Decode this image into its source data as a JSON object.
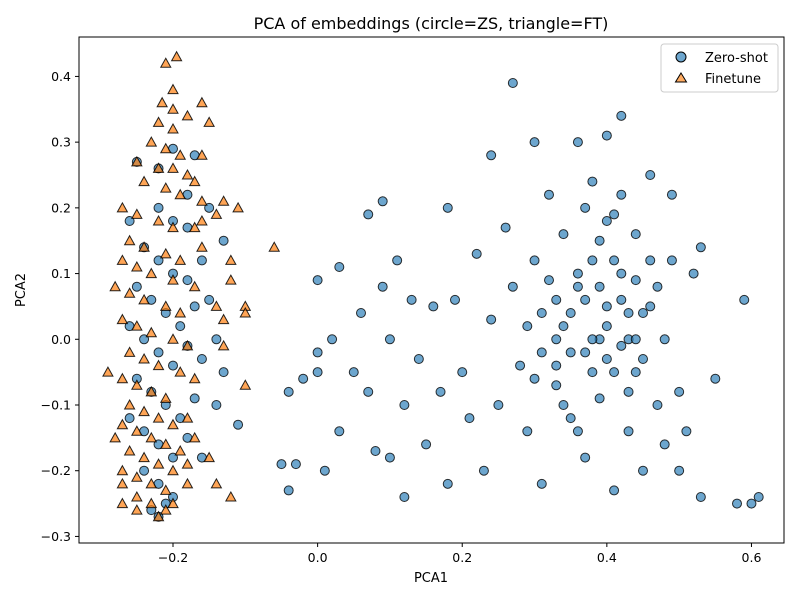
{
  "chart_data": {
    "type": "scatter",
    "title": "PCA of embeddings (circle=ZS, triangle=FT)",
    "xlabel": "PCA1",
    "ylabel": "PCA2",
    "xlim": [
      -0.33,
      0.645
    ],
    "ylim": [
      -0.31,
      0.46
    ],
    "xticks": [
      -0.2,
      0.0,
      0.2,
      0.4,
      0.6
    ],
    "xtick_labels": [
      "−0.2",
      "0.0",
      "0.2",
      "0.4",
      "0.6"
    ],
    "yticks": [
      -0.3,
      -0.2,
      -0.1,
      0.0,
      0.1,
      0.2,
      0.3,
      0.4
    ],
    "ytick_labels": [
      "−0.3",
      "−0.2",
      "−0.1",
      "0.0",
      "0.1",
      "0.2",
      "0.3",
      "0.4"
    ],
    "grid": false,
    "legend_position": "top-right",
    "series": [
      {
        "name": "Zero-shot",
        "marker": "circle",
        "color": "#1f77b4",
        "points": [
          [
            -0.25,
            0.27
          ],
          [
            -0.22,
            0.26
          ],
          [
            -0.2,
            0.29
          ],
          [
            -0.18,
            0.22
          ],
          [
            -0.26,
            0.18
          ],
          [
            -0.22,
            0.2
          ],
          [
            -0.2,
            0.18
          ],
          [
            -0.18,
            0.17
          ],
          [
            -0.24,
            0.14
          ],
          [
            -0.22,
            0.12
          ],
          [
            -0.2,
            0.1
          ],
          [
            -0.18,
            0.09
          ],
          [
            -0.16,
            0.12
          ],
          [
            -0.25,
            0.08
          ],
          [
            -0.23,
            0.06
          ],
          [
            -0.21,
            0.04
          ],
          [
            -0.19,
            0.02
          ],
          [
            -0.17,
            0.05
          ],
          [
            -0.26,
            0.02
          ],
          [
            -0.24,
            0.0
          ],
          [
            -0.22,
            -0.02
          ],
          [
            -0.2,
            -0.04
          ],
          [
            -0.18,
            -0.01
          ],
          [
            -0.16,
            -0.03
          ],
          [
            -0.25,
            -0.06
          ],
          [
            -0.23,
            -0.08
          ],
          [
            -0.21,
            -0.1
          ],
          [
            -0.19,
            -0.12
          ],
          [
            -0.17,
            -0.09
          ],
          [
            -0.26,
            -0.12
          ],
          [
            -0.24,
            -0.14
          ],
          [
            -0.22,
            -0.16
          ],
          [
            -0.2,
            -0.18
          ],
          [
            -0.18,
            -0.15
          ],
          [
            -0.24,
            -0.2
          ],
          [
            -0.22,
            -0.22
          ],
          [
            -0.2,
            -0.24
          ],
          [
            -0.23,
            -0.26
          ],
          [
            -0.22,
            -0.27
          ],
          [
            -0.21,
            -0.25
          ],
          [
            -0.15,
            0.06
          ],
          [
            -0.14,
            0.0
          ],
          [
            -0.13,
            -0.05
          ],
          [
            -0.14,
            -0.1
          ],
          [
            -0.11,
            -0.13
          ],
          [
            -0.16,
            -0.18
          ],
          [
            -0.15,
            0.2
          ],
          [
            -0.13,
            0.15
          ],
          [
            -0.17,
            0.28
          ],
          [
            -0.05,
            -0.19
          ],
          [
            -0.04,
            -0.23
          ],
          [
            -0.03,
            -0.19
          ],
          [
            -0.04,
            -0.08
          ],
          [
            -0.02,
            -0.06
          ],
          [
            0.0,
            -0.05
          ],
          [
            0.0,
            -0.02
          ],
          [
            0.0,
            0.09
          ],
          [
            0.01,
            -0.2
          ],
          [
            0.02,
            0.0
          ],
          [
            0.03,
            0.11
          ],
          [
            0.03,
            -0.14
          ],
          [
            0.05,
            -0.05
          ],
          [
            0.06,
            0.04
          ],
          [
            0.07,
            0.19
          ],
          [
            0.07,
            -0.08
          ],
          [
            0.08,
            -0.17
          ],
          [
            0.09,
            0.08
          ],
          [
            0.09,
            0.21
          ],
          [
            0.1,
            -0.18
          ],
          [
            0.1,
            0.0
          ],
          [
            0.11,
            0.12
          ],
          [
            0.12,
            -0.24
          ],
          [
            0.12,
            -0.1
          ],
          [
            0.13,
            0.06
          ],
          [
            0.14,
            -0.03
          ],
          [
            0.15,
            -0.16
          ],
          [
            0.16,
            0.05
          ],
          [
            0.17,
            -0.08
          ],
          [
            0.18,
            -0.22
          ],
          [
            0.18,
            0.2
          ],
          [
            0.19,
            0.06
          ],
          [
            0.2,
            -0.05
          ],
          [
            0.21,
            -0.12
          ],
          [
            0.22,
            0.13
          ],
          [
            0.23,
            -0.2
          ],
          [
            0.24,
            0.03
          ],
          [
            0.24,
            0.28
          ],
          [
            0.25,
            -0.1
          ],
          [
            0.26,
            0.17
          ],
          [
            0.27,
            0.08
          ],
          [
            0.27,
            0.39
          ],
          [
            0.28,
            -0.04
          ],
          [
            0.29,
            -0.14
          ],
          [
            0.3,
            0.3
          ],
          [
            0.3,
            0.12
          ],
          [
            0.31,
            0.04
          ],
          [
            0.31,
            -0.22
          ],
          [
            0.32,
            0.22
          ],
          [
            0.33,
            -0.07
          ],
          [
            0.34,
            0.16
          ],
          [
            0.34,
            0.02
          ],
          [
            0.35,
            -0.12
          ],
          [
            0.36,
            0.3
          ],
          [
            0.36,
            0.08
          ],
          [
            0.37,
            -0.02
          ],
          [
            0.37,
            -0.18
          ],
          [
            0.38,
            0.24
          ],
          [
            0.38,
            0.12
          ],
          [
            0.39,
            0.0
          ],
          [
            0.39,
            -0.09
          ],
          [
            0.4,
            0.31
          ],
          [
            0.4,
            0.18
          ],
          [
            0.4,
            0.05
          ],
          [
            0.41,
            -0.05
          ],
          [
            0.41,
            -0.23
          ],
          [
            0.42,
            0.34
          ],
          [
            0.42,
            0.22
          ],
          [
            0.42,
            0.1
          ],
          [
            0.43,
            0.0
          ],
          [
            0.43,
            -0.14
          ],
          [
            0.44,
            0.16
          ],
          [
            0.44,
            -0.05
          ],
          [
            0.45,
            0.04
          ],
          [
            0.45,
            -0.2
          ],
          [
            0.46,
            0.25
          ],
          [
            0.46,
            0.12
          ],
          [
            0.47,
            -0.1
          ],
          [
            0.47,
            0.08
          ],
          [
            0.48,
            0.0
          ],
          [
            0.48,
            -0.16
          ],
          [
            0.49,
            0.22
          ],
          [
            0.49,
            0.12
          ],
          [
            0.5,
            -0.08
          ],
          [
            0.5,
            -0.2
          ],
          [
            0.51,
            -0.14
          ],
          [
            0.52,
            0.1
          ],
          [
            0.53,
            0.14
          ],
          [
            0.53,
            -0.24
          ],
          [
            0.55,
            -0.06
          ],
          [
            0.58,
            -0.25
          ],
          [
            0.59,
            0.06
          ],
          [
            0.6,
            -0.25
          ],
          [
            0.61,
            -0.24
          ],
          [
            0.33,
            0.06
          ],
          [
            0.33,
            0.0
          ],
          [
            0.33,
            -0.04
          ],
          [
            0.35,
            0.04
          ],
          [
            0.35,
            -0.02
          ],
          [
            0.36,
            0.1
          ],
          [
            0.37,
            0.06
          ],
          [
            0.38,
            0.0
          ],
          [
            0.38,
            -0.05
          ],
          [
            0.39,
            0.08
          ],
          [
            0.4,
            0.02
          ],
          [
            0.4,
            -0.03
          ],
          [
            0.41,
            0.12
          ],
          [
            0.42,
            0.06
          ],
          [
            0.42,
            -0.01
          ],
          [
            0.43,
            0.04
          ],
          [
            0.44,
            0.09
          ],
          [
            0.44,
            0.0
          ],
          [
            0.45,
            -0.03
          ],
          [
            0.46,
            0.05
          ],
          [
            0.31,
            -0.02
          ],
          [
            0.32,
            0.09
          ],
          [
            0.29,
            0.02
          ],
          [
            0.3,
            -0.06
          ],
          [
            0.34,
            -0.1
          ],
          [
            0.36,
            -0.14
          ],
          [
            0.39,
            0.15
          ],
          [
            0.41,
            0.19
          ],
          [
            0.43,
            -0.08
          ],
          [
            0.37,
            0.2
          ]
        ]
      },
      {
        "name": "Finetune",
        "marker": "triangle",
        "color": "#ff7f0e",
        "points": [
          [
            -0.195,
            0.43
          ],
          [
            -0.21,
            0.42
          ],
          [
            -0.2,
            0.38
          ],
          [
            -0.215,
            0.36
          ],
          [
            -0.2,
            0.35
          ],
          [
            -0.16,
            0.36
          ],
          [
            -0.22,
            0.33
          ],
          [
            -0.2,
            0.32
          ],
          [
            -0.18,
            0.34
          ],
          [
            -0.15,
            0.33
          ],
          [
            -0.23,
            0.3
          ],
          [
            -0.21,
            0.29
          ],
          [
            -0.19,
            0.28
          ],
          [
            -0.16,
            0.28
          ],
          [
            -0.25,
            0.27
          ],
          [
            -0.22,
            0.26
          ],
          [
            -0.2,
            0.26
          ],
          [
            -0.18,
            0.25
          ],
          [
            -0.24,
            0.24
          ],
          [
            -0.21,
            0.23
          ],
          [
            -0.19,
            0.22
          ],
          [
            -0.16,
            0.21
          ],
          [
            -0.14,
            0.19
          ],
          [
            -0.13,
            0.21
          ],
          [
            -0.27,
            0.2
          ],
          [
            -0.25,
            0.19
          ],
          [
            -0.22,
            0.18
          ],
          [
            -0.2,
            0.17
          ],
          [
            -0.17,
            0.17
          ],
          [
            -0.26,
            0.15
          ],
          [
            -0.24,
            0.14
          ],
          [
            -0.21,
            0.13
          ],
          [
            -0.19,
            0.12
          ],
          [
            -0.16,
            0.14
          ],
          [
            -0.27,
            0.12
          ],
          [
            -0.25,
            0.11
          ],
          [
            -0.23,
            0.1
          ],
          [
            -0.2,
            0.09
          ],
          [
            -0.17,
            0.08
          ],
          [
            -0.28,
            0.08
          ],
          [
            -0.26,
            0.07
          ],
          [
            -0.24,
            0.06
          ],
          [
            -0.21,
            0.05
          ],
          [
            -0.19,
            0.04
          ],
          [
            -0.27,
            0.03
          ],
          [
            -0.25,
            0.02
          ],
          [
            -0.23,
            0.01
          ],
          [
            -0.2,
            0.0
          ],
          [
            -0.18,
            -0.01
          ],
          [
            -0.26,
            -0.02
          ],
          [
            -0.24,
            -0.03
          ],
          [
            -0.22,
            -0.04
          ],
          [
            -0.19,
            -0.05
          ],
          [
            -0.17,
            -0.06
          ],
          [
            -0.29,
            -0.05
          ],
          [
            -0.27,
            -0.06
          ],
          [
            -0.25,
            -0.07
          ],
          [
            -0.23,
            -0.08
          ],
          [
            -0.21,
            -0.09
          ],
          [
            -0.26,
            -0.1
          ],
          [
            -0.24,
            -0.11
          ],
          [
            -0.22,
            -0.12
          ],
          [
            -0.2,
            -0.13
          ],
          [
            -0.18,
            -0.12
          ],
          [
            -0.27,
            -0.13
          ],
          [
            -0.25,
            -0.14
          ],
          [
            -0.23,
            -0.15
          ],
          [
            -0.21,
            -0.16
          ],
          [
            -0.19,
            -0.17
          ],
          [
            -0.28,
            -0.15
          ],
          [
            -0.26,
            -0.17
          ],
          [
            -0.24,
            -0.18
          ],
          [
            -0.22,
            -0.19
          ],
          [
            -0.2,
            -0.2
          ],
          [
            -0.18,
            -0.19
          ],
          [
            -0.27,
            -0.2
          ],
          [
            -0.25,
            -0.21
          ],
          [
            -0.23,
            -0.22
          ],
          [
            -0.21,
            -0.23
          ],
          [
            -0.27,
            -0.22
          ],
          [
            -0.25,
            -0.24
          ],
          [
            -0.23,
            -0.25
          ],
          [
            -0.21,
            -0.26
          ],
          [
            -0.27,
            -0.25
          ],
          [
            -0.25,
            -0.26
          ],
          [
            -0.22,
            -0.27
          ],
          [
            -0.2,
            -0.25
          ],
          [
            -0.13,
            -0.01
          ],
          [
            -0.12,
            0.12
          ],
          [
            -0.11,
            0.2
          ],
          [
            -0.1,
            -0.07
          ],
          [
            -0.12,
            0.09
          ],
          [
            -0.06,
            0.14
          ],
          [
            -0.1,
            0.05
          ],
          [
            -0.12,
            -0.24
          ],
          [
            -0.14,
            0.05
          ],
          [
            -0.13,
            0.03
          ],
          [
            -0.1,
            0.04
          ],
          [
            -0.17,
            -0.15
          ],
          [
            -0.15,
            -0.18
          ],
          [
            -0.14,
            -0.22
          ],
          [
            -0.18,
            -0.22
          ],
          [
            -0.16,
            0.18
          ],
          [
            -0.17,
            0.24
          ]
        ]
      }
    ]
  }
}
